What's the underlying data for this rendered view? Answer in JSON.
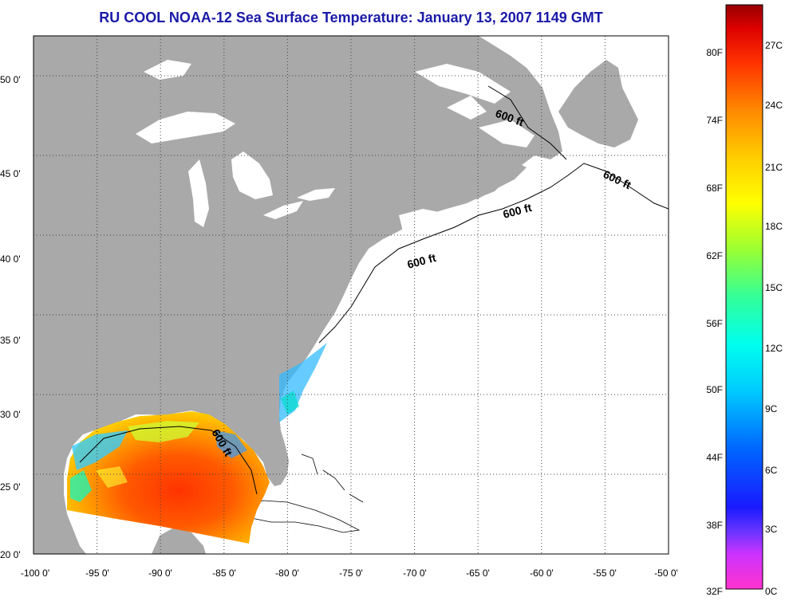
{
  "title": "RU COOL  NOAA-12  Sea Surface Temperature:  January 13, 2007 1149 GMT",
  "map": {
    "lon_ticks": [
      "-100 0'",
      "-95 0'",
      "-90 0'",
      "-85 0'",
      "-80 0'",
      "-75 0'",
      "-70 0'",
      "-65 0'",
      "-60 0'",
      "-55 0'",
      "-50 0'"
    ],
    "lat_ticks": [
      "50 0'",
      "45 0'",
      "40 0'",
      "35 0'",
      "30 0'",
      "25 0'",
      "20 0'"
    ],
    "lon_range": [
      -100,
      -50
    ],
    "lat_range": [
      20,
      52.5
    ],
    "grid": "dotted",
    "colors": {
      "land": "#a9a9a9",
      "ocean": "#ffffff",
      "lakes": "#ffffff"
    },
    "isobath_labels": [
      "600 ft",
      "600 ft",
      "600 ft",
      "600 ft",
      "600 ft"
    ]
  },
  "colorbar": {
    "fahrenheit_labels": [
      "80F",
      "74F",
      "68F",
      "62F",
      "56F",
      "50F",
      "44F",
      "38F",
      "32F"
    ],
    "celsius_labels": [
      "27C",
      "24C",
      "21C",
      "18C",
      "15C",
      "12C",
      "9C",
      "6C",
      "3C",
      "0C"
    ],
    "gradient_colors": [
      "#ff33cc",
      "#9933ff",
      "#1a1aff",
      "#0066ff",
      "#00ccff",
      "#00ffee",
      "#33ff99",
      "#99ff33",
      "#ffff00",
      "#ffcc00",
      "#ff8800",
      "#ff4400",
      "#ee0000",
      "#aa0000"
    ]
  }
}
